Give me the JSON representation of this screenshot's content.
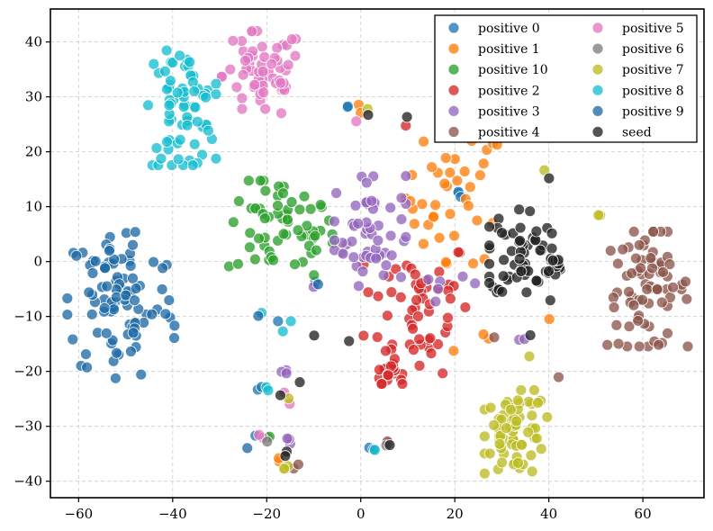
{
  "chart_data": {
    "type": "scatter",
    "title": "",
    "xlabel": "",
    "ylabel": "",
    "xlim": [
      -66,
      73
    ],
    "ylim": [
      -43,
      46
    ],
    "xticks": [
      -60,
      -40,
      -20,
      0,
      20,
      40,
      60
    ],
    "yticks": [
      -40,
      -30,
      -20,
      -10,
      0,
      10,
      20,
      30,
      40
    ],
    "xtick_labels": [
      "−60",
      "−40",
      "−20",
      "0",
      "20",
      "40",
      "60"
    ],
    "ytick_labels": [
      "−40",
      "−30",
      "−20",
      "−10",
      "0",
      "10",
      "20",
      "30",
      "40"
    ],
    "grid": true,
    "legend_position": "top-right",
    "legend_columns": 2,
    "series": [
      {
        "name": "positive 0",
        "color": "#1f77b4",
        "clusters": [
          {
            "cx": 21,
            "cy": 12,
            "sx": 0.6,
            "sy": 0.5,
            "n": 3
          },
          {
            "cx": -3,
            "cy": 28,
            "sx": 0.6,
            "sy": 0.8,
            "n": 2
          },
          {
            "cx": -20,
            "cy": -23,
            "sx": 1,
            "sy": 0.6,
            "n": 2
          },
          {
            "cx": -17,
            "cy": -11,
            "sx": 0.5,
            "sy": 0.5,
            "n": 1
          },
          {
            "cx": -22,
            "cy": -31,
            "sx": 0.5,
            "sy": 0.5,
            "n": 1
          },
          {
            "cx": 2,
            "cy": -34,
            "sx": 0.8,
            "sy": 0.8,
            "n": 2
          },
          {
            "cx": -10,
            "cy": -4,
            "sx": 0.5,
            "sy": 0.5,
            "n": 1
          }
        ]
      },
      {
        "name": "positive 1",
        "color": "#ff7f0e",
        "clusters": [
          {
            "cx": 20,
            "cy": 12,
            "sx": 5.5,
            "sy": 6.5,
            "n": 40
          },
          {
            "cx": 28,
            "cy": -14,
            "sx": 1,
            "sy": 0.6,
            "n": 2
          },
          {
            "cx": 40,
            "cy": -10,
            "sx": 0.5,
            "sy": 0.5,
            "n": 1
          },
          {
            "cx": 19,
            "cy": -17,
            "sx": 0.5,
            "sy": 0.5,
            "n": 1
          },
          {
            "cx": -18,
            "cy": -36,
            "sx": 0.8,
            "sy": 0.6,
            "n": 2
          },
          {
            "cx": 0,
            "cy": 28,
            "sx": 0.6,
            "sy": 0.6,
            "n": 2
          }
        ]
      },
      {
        "name": "positive 10",
        "color": "#2ca02c",
        "clusters": [
          {
            "cx": -17,
            "cy": 6,
            "sx": 5.8,
            "sy": 4.6,
            "n": 60
          },
          {
            "cx": -20,
            "cy": -32,
            "sx": 0.6,
            "sy": 0.6,
            "n": 2
          },
          {
            "cx": -9,
            "cy": -3,
            "sx": 0.5,
            "sy": 0.5,
            "n": 1
          }
        ]
      },
      {
        "name": "positive 2",
        "color": "#d62728",
        "clusters": [
          {
            "cx": 12,
            "cy": -8,
            "sx": 6,
            "sy": 6.5,
            "n": 55
          },
          {
            "cx": 6,
            "cy": -20,
            "sx": 1.5,
            "sy": 1.2,
            "n": 20
          },
          {
            "cx": 19,
            "cy": 24,
            "sx": 1,
            "sy": 1.2,
            "n": 4
          },
          {
            "cx": 10,
            "cy": 25,
            "sx": 0.5,
            "sy": 0.5,
            "n": 1
          }
        ]
      },
      {
        "name": "positive 3",
        "color": "#9467bd",
        "clusters": [
          {
            "cx": 2,
            "cy": 6,
            "sx": 4,
            "sy": 5.5,
            "n": 55
          },
          {
            "cx": 19,
            "cy": -5,
            "sx": 3,
            "sy": 1.2,
            "n": 6
          },
          {
            "cx": -16,
            "cy": -33,
            "sx": 1,
            "sy": 1,
            "n": 3
          },
          {
            "cx": -16,
            "cy": -20,
            "sx": 0.8,
            "sy": 0.8,
            "n": 3
          },
          {
            "cx": -10,
            "cy": -4,
            "sx": 0.5,
            "sy": 0.5,
            "n": 1
          },
          {
            "cx": 34,
            "cy": -14,
            "sx": 0.6,
            "sy": 0.5,
            "n": 2
          }
        ]
      },
      {
        "name": "positive 4",
        "color": "#8c564b",
        "clusters": [
          {
            "cx": 61,
            "cy": -5,
            "sx": 4.5,
            "sy": 5.5,
            "n": 75
          },
          {
            "cx": -14,
            "cy": -37,
            "sx": 0.6,
            "sy": 0.6,
            "n": 2
          },
          {
            "cx": 6,
            "cy": -33,
            "sx": 0.6,
            "sy": 0.8,
            "n": 2
          },
          {
            "cx": 42,
            "cy": -21,
            "sx": 0.5,
            "sy": 0.5,
            "n": 1
          },
          {
            "cx": 28,
            "cy": -14,
            "sx": 0.5,
            "sy": 0.5,
            "n": 1
          }
        ]
      },
      {
        "name": "positive 5",
        "color": "#e377c2",
        "clusters": [
          {
            "cx": -21,
            "cy": 34,
            "sx": 4.5,
            "sy": 4.2,
            "n": 60
          },
          {
            "cx": -16,
            "cy": -25,
            "sx": 0.6,
            "sy": 0.6,
            "n": 2
          },
          {
            "cx": -21,
            "cy": -33,
            "sx": 0.8,
            "sy": 0.8,
            "n": 2
          },
          {
            "cx": 0,
            "cy": 26,
            "sx": 0.5,
            "sy": 0.5,
            "n": 1
          }
        ]
      },
      {
        "name": "positive 6",
        "color": "#7f7f7f",
        "clusters": [
          {
            "cx": -19,
            "cy": -33,
            "sx": 0.6,
            "sy": 0.6,
            "n": 1
          },
          {
            "cx": 5,
            "cy": -33,
            "sx": 0.5,
            "sy": 0.5,
            "n": 1
          }
        ]
      },
      {
        "name": "positive 7",
        "color": "#bcbd22",
        "clusters": [
          {
            "cx": 33,
            "cy": -31,
            "sx": 3.5,
            "sy": 4,
            "n": 65
          },
          {
            "cx": 51,
            "cy": 8.8,
            "sx": 0.5,
            "sy": 0.3,
            "n": 2
          },
          {
            "cx": 40,
            "cy": 17,
            "sx": 0.5,
            "sy": 0.5,
            "n": 1
          },
          {
            "cx": -16,
            "cy": -38,
            "sx": 0.8,
            "sy": 0.4,
            "n": 3
          },
          {
            "cx": 36,
            "cy": -17,
            "sx": 0.5,
            "sy": 0.5,
            "n": 1
          },
          {
            "cx": 2,
            "cy": 28,
            "sx": 0.5,
            "sy": 0.5,
            "n": 1
          },
          {
            "cx": -15,
            "cy": -25,
            "sx": 0.5,
            "sy": 0.5,
            "n": 1
          }
        ]
      },
      {
        "name": "positive 8",
        "color": "#17becf",
        "clusters": [
          {
            "cx": -38,
            "cy": 28,
            "sx": 3.8,
            "sy": 5.5,
            "n": 75
          },
          {
            "cx": -16,
            "cy": -12,
            "sx": 0.6,
            "sy": 0.6,
            "n": 2
          },
          {
            "cx": -20,
            "cy": -23,
            "sx": 0.6,
            "sy": 0.6,
            "n": 2
          },
          {
            "cx": -21,
            "cy": -9,
            "sx": 0.5,
            "sy": 0.5,
            "n": 1
          },
          {
            "cx": 3,
            "cy": -35,
            "sx": 0.5,
            "sy": 0.5,
            "n": 1
          }
        ]
      },
      {
        "name": "positive 9",
        "color": "#1f6aa5",
        "clusters": [
          {
            "cx": -51,
            "cy": -7,
            "sx": 6,
            "sy": 7.5,
            "n": 95
          },
          {
            "cx": -22,
            "cy": -10,
            "sx": 0.5,
            "sy": 0.5,
            "n": 1
          },
          {
            "cx": -24,
            "cy": -34,
            "sx": 0.5,
            "sy": 0.5,
            "n": 1
          },
          {
            "cx": -9,
            "cy": -5,
            "sx": 0.5,
            "sy": 0.5,
            "n": 1
          }
        ]
      },
      {
        "name": "seed",
        "color": "#222222",
        "clusters": [
          {
            "cx": 34,
            "cy": 2,
            "sx": 3.5,
            "sy": 4,
            "n": 55
          },
          {
            "cx": 41,
            "cy": -1,
            "sx": 1,
            "sy": 1.2,
            "n": 15
          },
          {
            "cx": 30,
            "cy": -5,
            "sx": 1,
            "sy": 1.5,
            "n": 3
          },
          {
            "cx": 10,
            "cy": 26,
            "sx": 0.5,
            "sy": 0.5,
            "n": 1
          },
          {
            "cx": 1,
            "cy": 27,
            "sx": 0.5,
            "sy": 0.5,
            "n": 1
          },
          {
            "cx": -16,
            "cy": -35,
            "sx": 0.6,
            "sy": 0.6,
            "n": 2
          },
          {
            "cx": 6,
            "cy": -33,
            "sx": 0.5,
            "sy": 0.5,
            "n": 1
          },
          {
            "cx": -3,
            "cy": -14,
            "sx": 0.5,
            "sy": 0.5,
            "n": 1
          },
          {
            "cx": -17,
            "cy": -24,
            "sx": 0.5,
            "sy": 0.5,
            "n": 1
          },
          {
            "cx": 40,
            "cy": -8,
            "sx": 0.5,
            "sy": 0.5,
            "n": 1
          },
          {
            "cx": 36,
            "cy": -14,
            "sx": 0.5,
            "sy": 0.5,
            "n": 1
          },
          {
            "cx": -10,
            "cy": -13,
            "sx": 0.5,
            "sy": 0.5,
            "n": 1
          },
          {
            "cx": -13,
            "cy": -22,
            "sx": 0.5,
            "sy": 0.5,
            "n": 1
          },
          {
            "cx": 40,
            "cy": 14.5,
            "sx": 0.5,
            "sy": 0.5,
            "n": 1
          }
        ]
      }
    ]
  }
}
